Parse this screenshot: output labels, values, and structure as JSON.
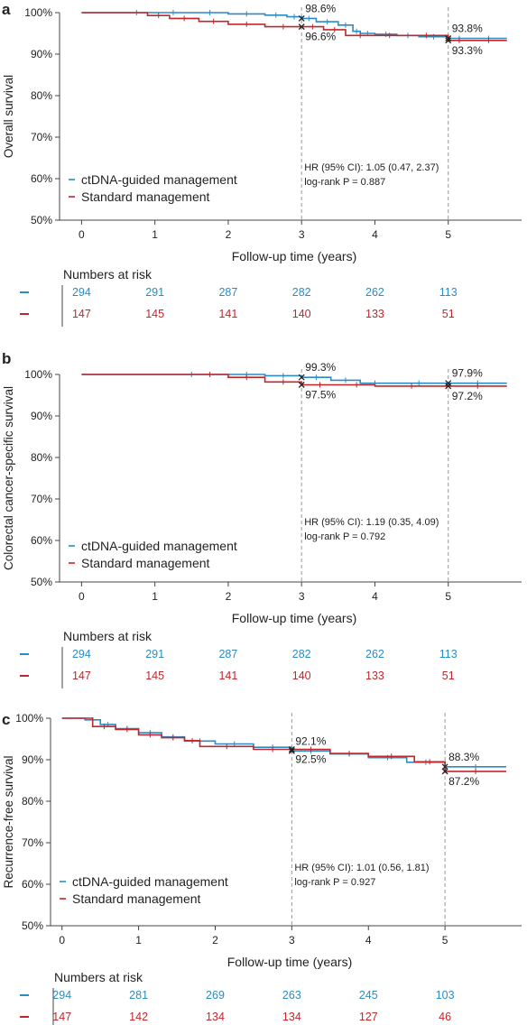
{
  "figure": {
    "colors": {
      "ctdna": "#2b8cc4",
      "standard": "#c0272d",
      "axis": "#444444",
      "text": "#222222",
      "refline": "#9a9a9a"
    },
    "risk_title": "Numbers at risk"
  },
  "chart_data": [
    {
      "panel_label": "a",
      "type": "line",
      "title": "",
      "xlabel": "Follow-up time (years)",
      "ylabel": "Overall survival",
      "xlim": [
        -0.3,
        6.0
      ],
      "ylim": [
        50,
        100
      ],
      "x_ticks": [
        "0",
        "1",
        "2",
        "3",
        "4",
        "5"
      ],
      "y_ticks": [
        "50%",
        "60%",
        "70%",
        "80%",
        "90%",
        "100%"
      ],
      "grid": false,
      "legend_placement": "lower-left",
      "series": [
        {
          "name": "ctDNA-guided management",
          "x": [
            0,
            0.5,
            1.0,
            1.5,
            2.0,
            2.5,
            2.8,
            3.0,
            3.2,
            3.5,
            3.7,
            3.8,
            4.0,
            4.3,
            4.6,
            5.0,
            5.3,
            5.8
          ],
          "y": [
            100,
            100,
            100,
            100,
            99.7,
            99.4,
            99.0,
            98.6,
            97.8,
            97.0,
            95.5,
            95.0,
            94.8,
            94.5,
            94.2,
            93.8,
            93.8,
            93.8
          ]
        },
        {
          "name": "Standard management",
          "x": [
            0,
            0.9,
            1.2,
            1.6,
            2.0,
            2.5,
            3.0,
            3.3,
            3.6,
            4.0,
            4.4,
            5.0,
            5.3,
            5.8
          ],
          "y": [
            100,
            99.3,
            98.6,
            97.9,
            97.2,
            96.6,
            96.6,
            95.9,
            94.5,
            94.5,
            94.5,
            93.3,
            93.3,
            93.3
          ]
        }
      ],
      "annotations": [
        {
          "x": 3,
          "y": 98.6,
          "text": "98.6%",
          "series": 0,
          "pos": "above"
        },
        {
          "x": 3,
          "y": 96.6,
          "text": "96.6%",
          "series": 1,
          "pos": "below"
        },
        {
          "x": 5,
          "y": 93.8,
          "text": "93.8%",
          "series": 0,
          "pos": "above"
        },
        {
          "x": 5,
          "y": 93.3,
          "text": "93.3%",
          "series": 1,
          "pos": "below"
        }
      ],
      "ref_lines": [
        3,
        5
      ],
      "stats": [
        "HR (95% CI): 1.05 (0.47, 2.37)",
        "log-rank P = 0.887"
      ],
      "risk_table": {
        "ctdna": [
          "294",
          "291",
          "287",
          "282",
          "262",
          "113"
        ],
        "standard": [
          "147",
          "145",
          "141",
          "140",
          "133",
          "51"
        ]
      }
    },
    {
      "panel_label": "b",
      "type": "line",
      "title": "",
      "xlabel": "Follow-up time (years)",
      "ylabel": "Colorectal cancer-specific survival",
      "xlim": [
        -0.3,
        6.0
      ],
      "ylim": [
        50,
        100
      ],
      "x_ticks": [
        "0",
        "1",
        "2",
        "3",
        "4",
        "5"
      ],
      "y_ticks": [
        "50%",
        "60%",
        "70%",
        "80%",
        "90%",
        "100%"
      ],
      "grid": false,
      "legend_placement": "lower-left",
      "series": [
        {
          "name": "ctDNA-guided management",
          "x": [
            0,
            1.0,
            2.0,
            2.5,
            3.0,
            3.4,
            3.8,
            4.2,
            5.0,
            5.8
          ],
          "y": [
            100,
            100,
            100,
            99.7,
            99.3,
            98.6,
            97.9,
            97.9,
            97.9,
            97.9
          ]
        },
        {
          "name": "Standard management",
          "x": [
            0,
            1.5,
            2.0,
            2.5,
            3.0,
            3.5,
            4.0,
            5.0,
            5.8
          ],
          "y": [
            100,
            100,
            99.3,
            98.2,
            97.5,
            97.5,
            97.2,
            97.2,
            97.2
          ]
        }
      ],
      "annotations": [
        {
          "x": 3,
          "y": 99.3,
          "text": "99.3%",
          "series": 0,
          "pos": "above"
        },
        {
          "x": 3,
          "y": 97.5,
          "text": "97.5%",
          "series": 1,
          "pos": "below"
        },
        {
          "x": 5,
          "y": 97.9,
          "text": "97.9%",
          "series": 0,
          "pos": "above"
        },
        {
          "x": 5,
          "y": 97.2,
          "text": "97.2%",
          "series": 1,
          "pos": "below"
        }
      ],
      "ref_lines": [
        3,
        5
      ],
      "stats": [
        "HR (95% CI): 1.19 (0.35, 4.09)",
        "log-rank P = 0.792"
      ],
      "risk_table": {
        "ctdna": [
          "294",
          "291",
          "287",
          "282",
          "262",
          "113"
        ],
        "standard": [
          "147",
          "145",
          "141",
          "140",
          "133",
          "51"
        ]
      }
    },
    {
      "panel_label": "c",
      "type": "line",
      "title": "",
      "xlabel": "Follow-up time (years)",
      "ylabel": "Recurrence-free survival",
      "xlim": [
        -0.15,
        6.0
      ],
      "ylim": [
        50,
        100
      ],
      "x_ticks": [
        "0",
        "1",
        "2",
        "3",
        "4",
        "5"
      ],
      "y_ticks": [
        "50%",
        "60%",
        "70%",
        "80%",
        "90%",
        "100%"
      ],
      "grid": false,
      "legend_placement": "lower-left",
      "series": [
        {
          "name": "ctDNA-guided management",
          "x": [
            0,
            0.3,
            0.5,
            0.7,
            1.0,
            1.3,
            1.6,
            2.0,
            2.5,
            3.0,
            3.5,
            4.0,
            4.5,
            5.0,
            5.8
          ],
          "y": [
            100,
            99.6,
            98.5,
            97.5,
            96.5,
            95.5,
            94.5,
            93.8,
            93.0,
            92.1,
            91.4,
            90.5,
            89.4,
            88.3,
            88.3
          ]
        },
        {
          "name": "Standard management",
          "x": [
            0,
            0.4,
            0.7,
            1.0,
            1.3,
            1.6,
            1.8,
            2.5,
            3.0,
            3.5,
            4.0,
            4.6,
            5.0,
            5.8
          ],
          "y": [
            100,
            98.0,
            97.3,
            96.0,
            95.3,
            94.6,
            93.2,
            92.5,
            92.5,
            91.5,
            90.8,
            89.5,
            87.2,
            87.2
          ]
        }
      ],
      "annotations": [
        {
          "x": 3,
          "y": 92.1,
          "text": "92.1%",
          "series": 0,
          "pos": "above"
        },
        {
          "x": 3,
          "y": 92.5,
          "text": "92.5%",
          "series": 1,
          "pos": "below"
        },
        {
          "x": 5,
          "y": 88.3,
          "text": "88.3%",
          "series": 0,
          "pos": "above"
        },
        {
          "x": 5,
          "y": 87.2,
          "text": "87.2%",
          "series": 1,
          "pos": "below"
        }
      ],
      "ref_lines": [
        3,
        5
      ],
      "stats": [
        "HR (95% CI): 1.01 (0.56, 1.81)",
        "log-rank P = 0.927"
      ],
      "risk_table": {
        "ctdna": [
          "294",
          "281",
          "269",
          "263",
          "245",
          "103"
        ],
        "standard": [
          "147",
          "142",
          "134",
          "134",
          "127",
          "46"
        ]
      }
    }
  ]
}
